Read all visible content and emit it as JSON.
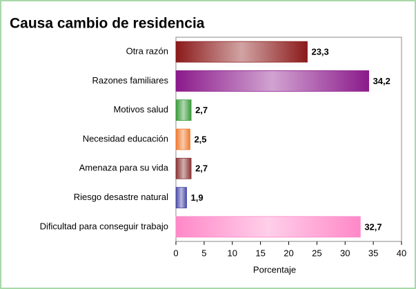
{
  "chart_data": {
    "type": "bar",
    "orientation": "horizontal",
    "title": "Causa cambio de residencia",
    "categories": [
      "Otra razón",
      "Razones familiares",
      "Motivos salud",
      "Necesidad educación",
      "Amenaza para su vida",
      "Riesgo desastre natural",
      "Dificultad para conseguir trabajo"
    ],
    "values": [
      23.3,
      34.2,
      2.7,
      2.5,
      2.7,
      1.9,
      32.7
    ],
    "value_labels": [
      "23,3",
      "34,2",
      "2,7",
      "2,5",
      "2,7",
      "1,9",
      "32,7"
    ],
    "colors": [
      "#8b1a1a",
      "#8b1a8b",
      "#3a9a3a",
      "#f07a30",
      "#8b3535",
      "#4a4aa8",
      "#ff88c8"
    ],
    "xlabel": "Porcentaje",
    "xlim": [
      0,
      40
    ],
    "xticks": [
      0,
      5,
      10,
      15,
      20,
      25,
      30,
      35,
      40
    ],
    "grid": false
  }
}
